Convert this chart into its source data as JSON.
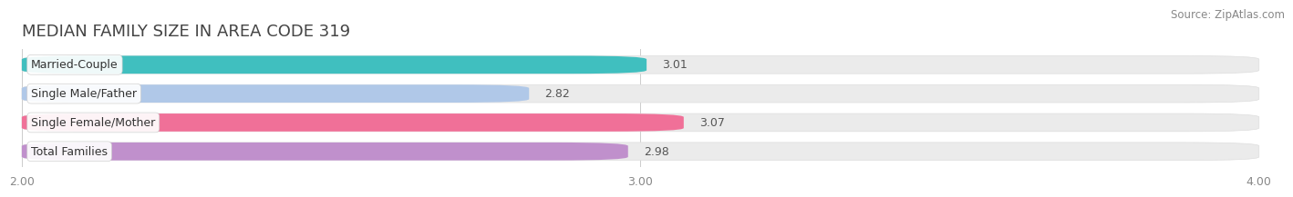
{
  "title": "MEDIAN FAMILY SIZE IN AREA CODE 319",
  "source": "Source: ZipAtlas.com",
  "categories": [
    "Married-Couple",
    "Single Male/Father",
    "Single Female/Mother",
    "Total Families"
  ],
  "values": [
    3.01,
    2.82,
    3.07,
    2.98
  ],
  "bar_colors": [
    "#40bfbf",
    "#b0c8e8",
    "#f07098",
    "#c090cc"
  ],
  "xlim": [
    2.0,
    4.0
  ],
  "xticks": [
    2.0,
    3.0,
    4.0
  ],
  "xtick_labels": [
    "2.00",
    "3.00",
    "4.00"
  ],
  "background_color": "#ffffff",
  "bar_background_color": "#ebebeb",
  "title_fontsize": 13,
  "label_fontsize": 9,
  "value_fontsize": 9,
  "tick_fontsize": 9,
  "source_fontsize": 8.5
}
